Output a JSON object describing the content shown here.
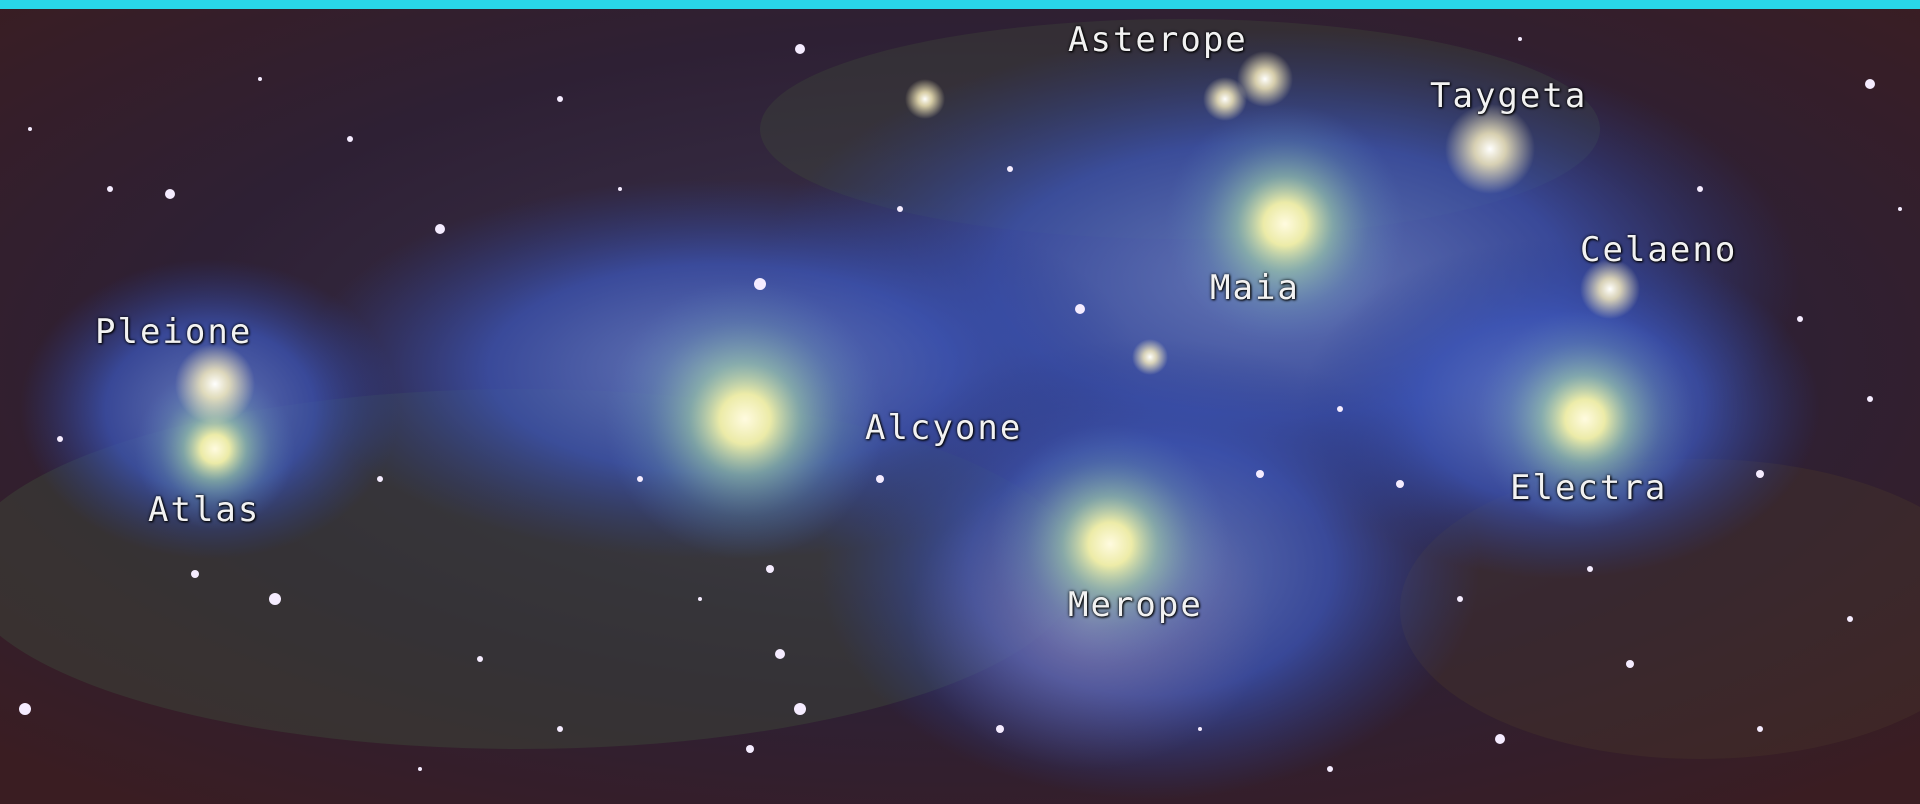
{
  "image": {
    "subject": "star cluster photograph",
    "colors": {
      "top_band": "#29d6e8",
      "sky_background": "#2a1a2e",
      "nebula": "#3a4fb8",
      "star_glow": "#fff6c8"
    }
  },
  "labels": {
    "asterope": "Asterope",
    "taygeta": "Taygeta",
    "maia": "Maia",
    "celaeno": "Celaeno",
    "pleione": "Pleione",
    "alcyone": "Alcyone",
    "atlas": "Atlas",
    "electra": "Electra",
    "merope": "Merope"
  }
}
